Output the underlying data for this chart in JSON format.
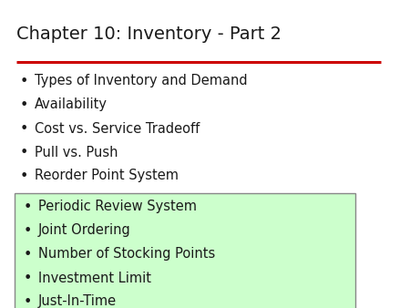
{
  "title": "Chapter 10: Inventory - Part 2",
  "title_fontsize": 14,
  "title_color": "#1a1a1a",
  "red_line_color": "#cc0000",
  "background_color": "#ffffff",
  "bullet_items_top": [
    "Types of Inventory and Demand",
    "Availability",
    "Cost vs. Service Tradeoff",
    "Pull vs. Push",
    "Reorder Point System"
  ],
  "bullet_items_box": [
    "Periodic Review System",
    "Joint Ordering",
    "Number of Stocking Points",
    "Investment Limit",
    "Just-In-Time"
  ],
  "bullet_color": "#1a1a1a",
  "bullet_fontsize": 10.5,
  "box_fill_color": "#ccffcc",
  "box_edge_color": "#888888",
  "font_family": "DejaVu Sans"
}
